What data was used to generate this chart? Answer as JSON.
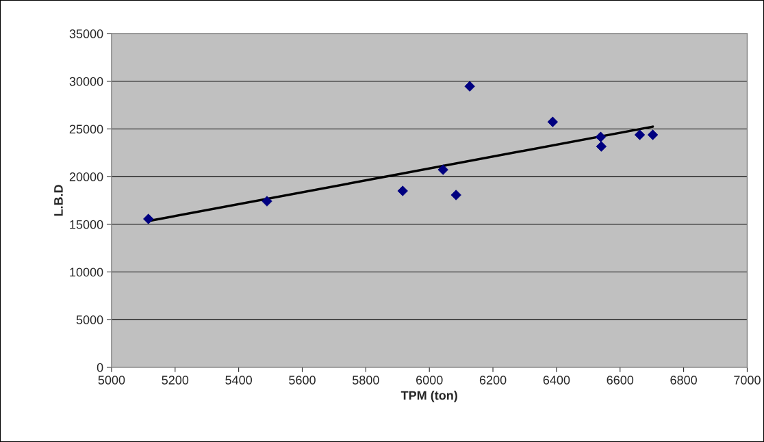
{
  "chart_data": {
    "type": "scatter",
    "xlabel": "TPM (ton)",
    "ylabel": "L.B.D",
    "xlim": [
      5000,
      7000
    ],
    "xticks": [
      5000,
      5200,
      5400,
      5600,
      5800,
      6000,
      6200,
      6400,
      6600,
      6800,
      7000
    ],
    "ylim": [
      0,
      35000
    ],
    "yticks": [
      0,
      5000,
      10000,
      15000,
      20000,
      25000,
      30000,
      35000
    ],
    "grid": "y",
    "marker": "diamond",
    "series": [
      {
        "color": "#000080",
        "x": [
          5116,
          5489,
          5916,
          6043,
          6084,
          6127,
          6388,
          6539,
          6541,
          6662,
          6703
        ],
        "values": [
          15560,
          17420,
          18500,
          20720,
          18070,
          29470,
          25740,
          24160,
          23160,
          24380,
          24380
        ]
      },
      {
        "type": "line",
        "color": "#000000",
        "marker": "none",
        "x": [
          5116,
          6703
        ],
        "values": [
          15340,
          25240
        ]
      }
    ]
  }
}
